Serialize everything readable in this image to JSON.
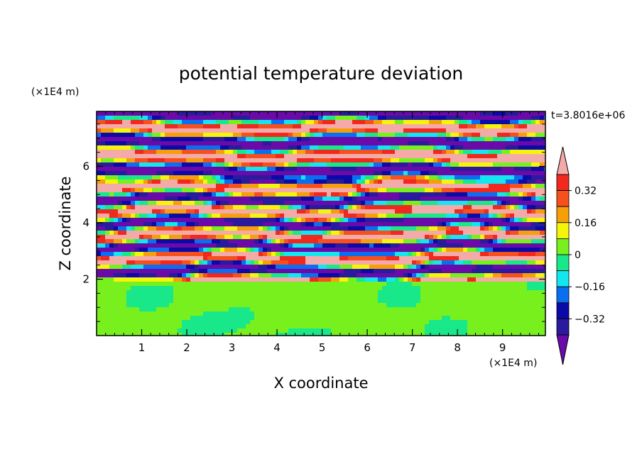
{
  "chart_data": {
    "type": "heatmap",
    "title": "potential temperature deviation",
    "xlabel": "X coordinate",
    "ylabel": "Z coordinate",
    "x_unit": "(×1E4 m)",
    "y_unit": "(×1E4 m)",
    "time_label": "t=3.8016e+06",
    "xlim": [
      0,
      9.95
    ],
    "ylim": [
      0,
      7.95
    ],
    "x_ticks": [
      "1",
      "2",
      "3",
      "4",
      "5",
      "6",
      "7",
      "8",
      "9"
    ],
    "y_ticks": [
      "2",
      "4",
      "6"
    ],
    "colorbar": {
      "levels": [
        -0.4,
        -0.32,
        -0.24,
        -0.16,
        -0.08,
        0,
        0.08,
        0.16,
        0.24,
        0.32,
        0.4
      ],
      "tick_labels": [
        "0.32",
        "0.16",
        "0",
        "−0.16",
        "−0.32"
      ],
      "colors": [
        "#6a0aa8",
        "#2a1a9e",
        "#0a0aa8",
        "#0a6ef0",
        "#14e6f0",
        "#18e88a",
        "#78f01e",
        "#f5f50a",
        "#f5a00a",
        "#f5501e",
        "#f0281e",
        "#f5aaaa"
      ],
      "extend": "both"
    },
    "field": {
      "layers": [
        {
          "z_range": [
            0,
            1.9
          ],
          "values": [
            0,
            0.08
          ],
          "description": ""
        },
        {
          "z_range": [
            1.9,
            5.5
          ],
          "values": [
            -0.4,
            0.4
          ],
          "description": ""
        },
        {
          "z_range": [
            5.5,
            7.95
          ],
          "values": [
            -0.4,
            0.4
          ],
          "description": ""
        }
      ]
    }
  }
}
